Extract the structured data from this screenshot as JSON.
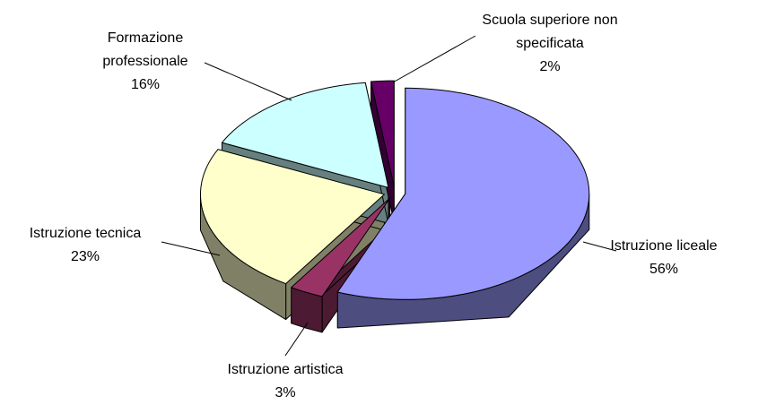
{
  "chart_data": {
    "type": "pie",
    "categories": [
      "Istruzione liceale",
      "Istruzione artistica",
      "Istruzione tecnica",
      "Formazione professionale",
      "Scuola superiore non specificata"
    ],
    "values": [
      56,
      3,
      23,
      16,
      2
    ],
    "value_labels": [
      "56%",
      "3%",
      "23%",
      "16%",
      "2%"
    ],
    "colors": [
      "#9999ff",
      "#993366",
      "#ffffcc",
      "#ccffff",
      "#660066"
    ],
    "side_colors": [
      "#4d4d80",
      "#4d1a33",
      "#808066",
      "#668080",
      "#330033"
    ]
  }
}
